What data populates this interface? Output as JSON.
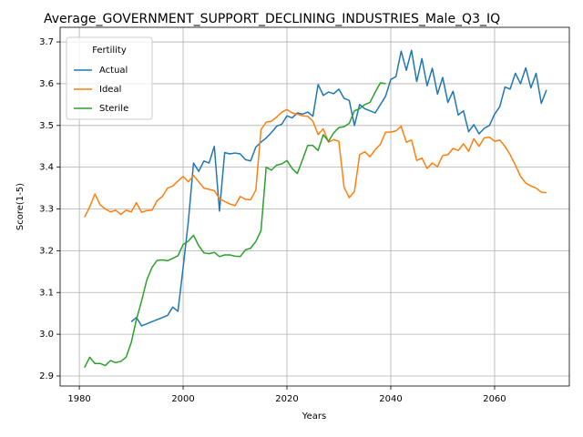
{
  "chart_data": {
    "type": "line",
    "title": "Average_GOVERNMENT_SUPPORT_DECLINING_INDUSTRIES_Male_Q3_IQ",
    "x_label": "Years",
    "y_label": "Score(1-5)",
    "legend_title": "Fertility",
    "legend": "upper left",
    "grid": true,
    "x": [
      1981,
      1982,
      1983,
      1984,
      1985,
      1986,
      1987,
      1988,
      1989,
      1990,
      1991,
      1992,
      1993,
      1994,
      1995,
      1996,
      1997,
      1998,
      1999,
      2000,
      2001,
      2002,
      2003,
      2004,
      2005,
      2006,
      2007,
      2008,
      2009,
      2010,
      2011,
      2012,
      2013,
      2014,
      2015,
      2016,
      2017,
      2018,
      2019,
      2020,
      2021,
      2022,
      2023,
      2024,
      2025,
      2026,
      2027,
      2028,
      2029,
      2030,
      2031,
      2032,
      2033,
      2034,
      2035,
      2036,
      2037,
      2038,
      2039,
      2040,
      2041,
      2042,
      2043,
      2044,
      2045,
      2046,
      2047,
      2048,
      2049,
      2050,
      2051,
      2052,
      2053,
      2054,
      2055,
      2056,
      2057,
      2058,
      2059,
      2060,
      2061,
      2062,
      2063,
      2064,
      2065,
      2066,
      2067,
      2068,
      2069,
      2070
    ],
    "series": [
      {
        "name": "Actual",
        "color": "#1f77b4",
        "values": [
          null,
          null,
          null,
          null,
          null,
          null,
          null,
          null,
          null,
          3.03,
          3.04,
          3.02,
          3.025,
          3.03,
          3.035,
          3.04,
          3.045,
          3.065,
          3.055,
          3.16,
          3.27,
          3.41,
          3.39,
          3.415,
          3.41,
          3.45,
          3.295,
          3.435,
          3.432,
          3.434,
          3.432,
          3.418,
          3.415,
          3.448,
          3.46,
          3.47,
          3.483,
          3.498,
          3.503,
          3.523,
          3.518,
          3.53,
          3.527,
          3.532,
          3.522,
          3.598,
          3.572,
          3.58,
          3.576,
          3.587,
          3.565,
          3.56,
          3.5,
          3.55,
          3.54,
          3.535,
          3.53,
          3.55,
          3.57,
          3.61,
          3.617,
          3.678,
          3.632,
          3.68,
          3.605,
          3.66,
          3.595,
          3.637,
          3.575,
          3.615,
          3.555,
          3.582,
          3.525,
          3.535,
          3.485,
          3.502,
          3.48,
          3.493,
          3.5,
          3.527,
          3.545,
          3.592,
          3.587,
          3.625,
          3.6,
          3.638,
          3.59,
          3.625,
          3.553,
          3.585
        ]
      },
      {
        "name": "Ideal",
        "color": "#ff7f0e",
        "values": [
          3.28,
          3.305,
          3.336,
          3.31,
          3.3,
          3.293,
          3.297,
          3.287,
          3.297,
          3.293,
          3.315,
          3.292,
          3.296,
          3.297,
          3.32,
          3.33,
          3.35,
          3.355,
          3.367,
          3.378,
          3.365,
          3.38,
          3.365,
          3.35,
          3.347,
          3.344,
          3.325,
          3.318,
          3.312,
          3.308,
          3.33,
          3.323,
          3.322,
          3.345,
          3.49,
          3.508,
          3.51,
          3.52,
          3.532,
          3.538,
          3.53,
          3.527,
          3.523,
          3.522,
          3.51,
          3.478,
          3.492,
          3.46,
          3.466,
          3.462,
          3.352,
          3.327,
          3.342,
          3.43,
          3.437,
          3.425,
          3.442,
          3.455,
          3.484,
          3.484,
          3.487,
          3.498,
          3.46,
          3.465,
          3.416,
          3.422,
          3.397,
          3.41,
          3.401,
          3.428,
          3.43,
          3.445,
          3.44,
          3.456,
          3.438,
          3.468,
          3.45,
          3.47,
          3.472,
          3.462,
          3.465,
          3.45,
          3.43,
          3.405,
          3.378,
          3.362,
          3.355,
          3.35,
          3.34,
          3.339
        ]
      },
      {
        "name": "Sterile",
        "color": "#2ca02c",
        "values": [
          2.92,
          2.945,
          2.93,
          2.93,
          2.925,
          2.937,
          2.932,
          2.935,
          2.945,
          2.98,
          3.035,
          3.08,
          3.13,
          3.16,
          3.177,
          3.178,
          3.176,
          3.182,
          3.188,
          3.215,
          3.223,
          3.237,
          3.212,
          3.195,
          3.193,
          3.196,
          3.186,
          3.19,
          3.19,
          3.187,
          3.186,
          3.202,
          3.206,
          3.222,
          3.248,
          3.4,
          3.393,
          3.405,
          3.408,
          3.416,
          3.397,
          3.385,
          3.418,
          3.452,
          3.452,
          3.44,
          3.478,
          3.462,
          3.482,
          3.495,
          3.497,
          3.505,
          3.535,
          3.54,
          3.55,
          3.555,
          3.58,
          3.602,
          3.6,
          null,
          null,
          null,
          null,
          null,
          null,
          null,
          null,
          null,
          null,
          null,
          null,
          null,
          null,
          null,
          null,
          null,
          null,
          null,
          null,
          null,
          null,
          null,
          null,
          null,
          null,
          null,
          null,
          null,
          null,
          null
        ]
      }
    ],
    "xlim": [
      1976.3,
      2074.4
    ],
    "xticks": [
      1980,
      2000,
      2020,
      2040,
      2060
    ],
    "ylim": [
      2.876,
      3.735
    ],
    "yticks": [
      2.9,
      {
        "value": 3,
        "label": "3.0"
      },
      3.1,
      3.2,
      3.3,
      3.4,
      3.5,
      3.6,
      3.7
    ]
  }
}
